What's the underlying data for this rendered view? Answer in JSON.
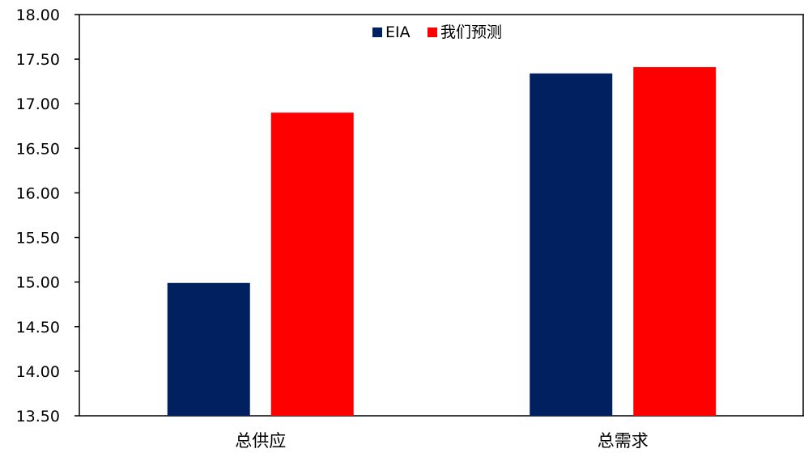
{
  "chart_data": {
    "type": "bar",
    "categories": [
      "总供应",
      "总需求"
    ],
    "series": [
      {
        "name": "EIA",
        "values": [
          14.99,
          17.34
        ],
        "color": "#002060"
      },
      {
        "name": "我们预测",
        "values": [
          16.9,
          17.41
        ],
        "color": "#FF0000"
      }
    ],
    "ylim": [
      13.5,
      18.0
    ],
    "yticks": [
      "13.50",
      "14.00",
      "14.50",
      "15.00",
      "15.50",
      "16.00",
      "16.50",
      "17.00",
      "17.50",
      "18.00"
    ],
    "grid": false,
    "legend_position": "top-center",
    "title": "",
    "xlabel": "",
    "ylabel": ""
  }
}
